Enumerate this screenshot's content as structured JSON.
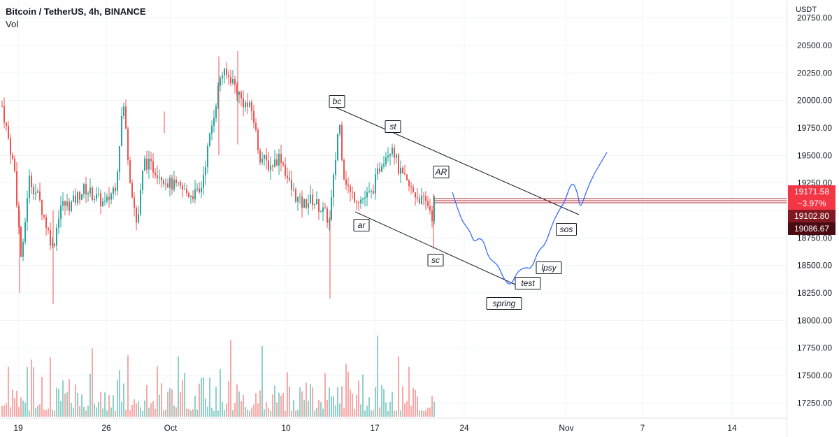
{
  "header": {
    "title": "Bitcoin / TetherUS, 4h, BINANCE",
    "indicator": "Vol"
  },
  "price_axis": {
    "currency": "USDT",
    "ticks": [
      "20750.00",
      "20500.00",
      "20250.00",
      "20000.00",
      "19750.00",
      "19500.00",
      "19250.00",
      "19000.00",
      "18750.00",
      "18500.00",
      "18250.00",
      "18000.00",
      "17750.00",
      "17500.00",
      "17250.00"
    ]
  },
  "time_axis": {
    "ticks": [
      "19",
      "26",
      "Oct",
      "10",
      "17",
      "24",
      "Nov",
      "7",
      "14"
    ]
  },
  "price_tags": {
    "last_price": "19171.58",
    "change": "−3.97%",
    "level_1": "19102.80",
    "level_2": "19086.67"
  },
  "annotations": [
    "bc",
    "st",
    "AR",
    "ar",
    "sc",
    "spring",
    "test",
    "lpsy",
    "sos"
  ],
  "colors": {
    "up": "#26a69a",
    "down": "#ef5350",
    "up_volume": "#8fd1c8",
    "down_volume": "#f7a9a7",
    "projection": "#2962ff",
    "channel": "#131722",
    "resistance": "#b22833",
    "tag_red": "#f23645",
    "tag_dark": "#801922",
    "grid": "#f0f3fa"
  },
  "chart_data": {
    "type": "candlestick",
    "symbol": "BTCUSDT",
    "interval": "4h",
    "y_range": [
      17100,
      20800
    ],
    "last_price": 19171.58,
    "channel": {
      "upper": {
        "from": {
          "date": "Oct 14",
          "price": 19950
        },
        "to": {
          "date": "Nov 3",
          "price": 19010
        }
      },
      "lower": {
        "from": {
          "date": "Oct 15",
          "price": 19040
        },
        "to": {
          "date": "Oct 29",
          "price": 18270
        }
      }
    },
    "projection_path": [
      {
        "date": "Oct 22",
        "price": 19150
      },
      {
        "date": "Oct 23",
        "price": 18950
      },
      {
        "date": "Oct 24",
        "price": 18700
      },
      {
        "date": "Oct 25",
        "price": 18800
      },
      {
        "date": "Oct 27",
        "price": 18560
      },
      {
        "date": "Oct 28",
        "price": 18290
      },
      {
        "date": "Oct 29",
        "price": 18470
      },
      {
        "date": "Oct 30",
        "price": 18480
      },
      {
        "date": "Oct 31",
        "price": 18670
      },
      {
        "date": "Nov 1",
        "price": 18930
      },
      {
        "date": "Nov 3",
        "price": 19020
      },
      {
        "date": "Nov 5",
        "price": 19530
      }
    ],
    "key_levels": [
      19171.58,
      19102.8,
      19086.67
    ],
    "swing_points": [
      {
        "label": "bc",
        "date": "Oct 14",
        "price": 19950
      },
      {
        "label": "st",
        "date": "Oct 18",
        "price": 19680
      },
      {
        "label": "AR",
        "date": "Oct 21",
        "price": 19200
      },
      {
        "label": "ar",
        "date": "Oct 15",
        "price": 19050
      },
      {
        "label": "sc",
        "date": "Oct 21",
        "price": 18650
      }
    ]
  }
}
